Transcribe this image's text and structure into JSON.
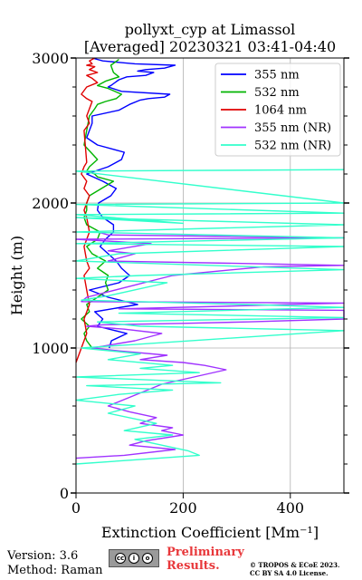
{
  "chart_data": {
    "type": "line",
    "title": "pollyxt_cyp at Limassol",
    "subtitle": "[Averaged] 20230321 03:41-04:40",
    "xlabel": "Extinction Coefficient [Mm⁻¹]",
    "ylabel": "Height (m)",
    "xlim": [
      0,
      500
    ],
    "ylim": [
      0,
      3000
    ],
    "xticks": [
      "0",
      "200",
      "400"
    ],
    "yticks": [
      "0",
      "1000",
      "2000",
      "3000"
    ],
    "grid": true,
    "legend_position": "top-right",
    "series": [
      {
        "name": "355 nm",
        "color": "#0000ff",
        "x": [
          62,
          66,
          95,
          40,
          50,
          35,
          115,
          60,
          25,
          80,
          100,
          85,
          75,
          60,
          45,
          55,
          70,
          70,
          50,
          40,
          42,
          65,
          75,
          50,
          20,
          60,
          85,
          90,
          40,
          20,
          25,
          30,
          30,
          80,
          100,
          120,
          135,
          165,
          175,
          85,
          60,
          65,
          80,
          95,
          130,
          145,
          115,
          130,
          165,
          185,
          110,
          50,
          30
        ],
        "y": [
          1000,
          1050,
          1100,
          1150,
          1200,
          1250,
          1300,
          1350,
          1400,
          1450,
          1500,
          1550,
          1600,
          1650,
          1700,
          1750,
          1800,
          1850,
          1900,
          1950,
          2000,
          2050,
          2100,
          2150,
          2200,
          2250,
          2300,
          2350,
          2400,
          2450,
          2500,
          2550,
          2600,
          2640,
          2680,
          2710,
          2720,
          2730,
          2750,
          2770,
          2800,
          2810,
          2850,
          2870,
          2880,
          2900,
          2910,
          2920,
          2930,
          2950,
          2960,
          2980,
          3000
        ]
      },
      {
        "name": "532 nm",
        "color": "#00b400",
        "x": [
          30,
          20,
          15,
          25,
          10,
          25,
          20,
          40,
          60,
          55,
          60,
          40,
          55,
          30,
          20,
          40,
          45,
          20,
          15,
          20,
          20,
          25,
          70,
          40,
          35,
          20,
          25,
          40,
          15,
          20,
          25,
          35,
          40,
          55,
          75,
          85,
          60,
          40,
          55,
          80,
          70,
          65,
          80
        ],
        "y": [
          1000,
          1050,
          1100,
          1150,
          1200,
          1250,
          1300,
          1350,
          1400,
          1450,
          1500,
          1550,
          1600,
          1650,
          1700,
          1750,
          1800,
          1850,
          1900,
          1950,
          2000,
          2050,
          2150,
          2180,
          2200,
          2220,
          2250,
          2300,
          2400,
          2500,
          2600,
          2650,
          2680,
          2700,
          2720,
          2750,
          2790,
          2810,
          2840,
          2870,
          2900,
          2950,
          2990
        ]
      },
      {
        "name": "1064 nm",
        "color": "#e00000",
        "x": [
          0,
          10,
          20,
          15,
          25,
          20,
          15,
          25,
          20,
          15,
          25,
          20,
          15,
          20,
          25,
          15,
          20,
          10,
          15,
          20,
          15,
          25,
          20,
          30,
          20,
          10,
          20,
          40,
          30,
          20,
          40,
          25,
          35,
          20,
          30,
          25,
          35
        ],
        "y": [
          900,
          1000,
          1100,
          1200,
          1300,
          1400,
          1500,
          1550,
          1600,
          1700,
          1800,
          1900,
          1950,
          2000,
          2050,
          2100,
          2150,
          2200,
          2250,
          2280,
          2500,
          2550,
          2600,
          2700,
          2720,
          2750,
          2800,
          2830,
          2860,
          2880,
          2900,
          2920,
          2940,
          2950,
          2960,
          2980,
          3000
        ]
      },
      {
        "name": "355 nm (NR)",
        "color": "#a033ff",
        "x": [
          0,
          90,
          185,
          100,
          130,
          200,
          160,
          180,
          120,
          150,
          100,
          60,
          160,
          280,
          240,
          200,
          120,
          170,
          80,
          30,
          110,
          160,
          90,
          20,
          50,
          200,
          320,
          500,
          500,
          80,
          300,
          500,
          10,
          20,
          180,
          350,
          500,
          60,
          110,
          60,
          140,
          0,
          500,
          60,
          40
        ],
        "y": [
          240,
          260,
          300,
          330,
          360,
          400,
          430,
          450,
          480,
          520,
          560,
          600,
          750,
          850,
          880,
          900,
          920,
          950,
          980,
          1000,
          1050,
          1100,
          1130,
          1150,
          1160,
          1170,
          1180,
          1200,
          1260,
          1270,
          1290,
          1310,
          1320,
          1350,
          1500,
          1560,
          1570,
          1600,
          1650,
          1670,
          1720,
          1750,
          1760,
          1780,
          1800
        ]
      },
      {
        "name": "532 nm (NR)",
        "color": "#33ffcc",
        "x": [
          0,
          230,
          210,
          160,
          110,
          180,
          90,
          150,
          60,
          110,
          0,
          80,
          180,
          20,
          270,
          0,
          230,
          120,
          180,
          60,
          120,
          10,
          500,
          120,
          40,
          500,
          80,
          500,
          320,
          10,
          60,
          170,
          0,
          120,
          500,
          0,
          80,
          500,
          0,
          500,
          0,
          500,
          0,
          200,
          0,
          500,
          0,
          500,
          0,
          500
        ],
        "y": [
          200,
          260,
          290,
          330,
          370,
          400,
          430,
          480,
          550,
          600,
          640,
          680,
          710,
          740,
          760,
          800,
          830,
          860,
          880,
          920,
          960,
          1000,
          1120,
          1150,
          1180,
          1210,
          1240,
          1280,
          1300,
          1330,
          1360,
          1450,
          1480,
          1500,
          1540,
          1600,
          1650,
          1700,
          1720,
          1760,
          1800,
          1850,
          1900,
          1860,
          1920,
          1930,
          1990,
          2000,
          2220,
          2230
        ]
      }
    ]
  }
}
